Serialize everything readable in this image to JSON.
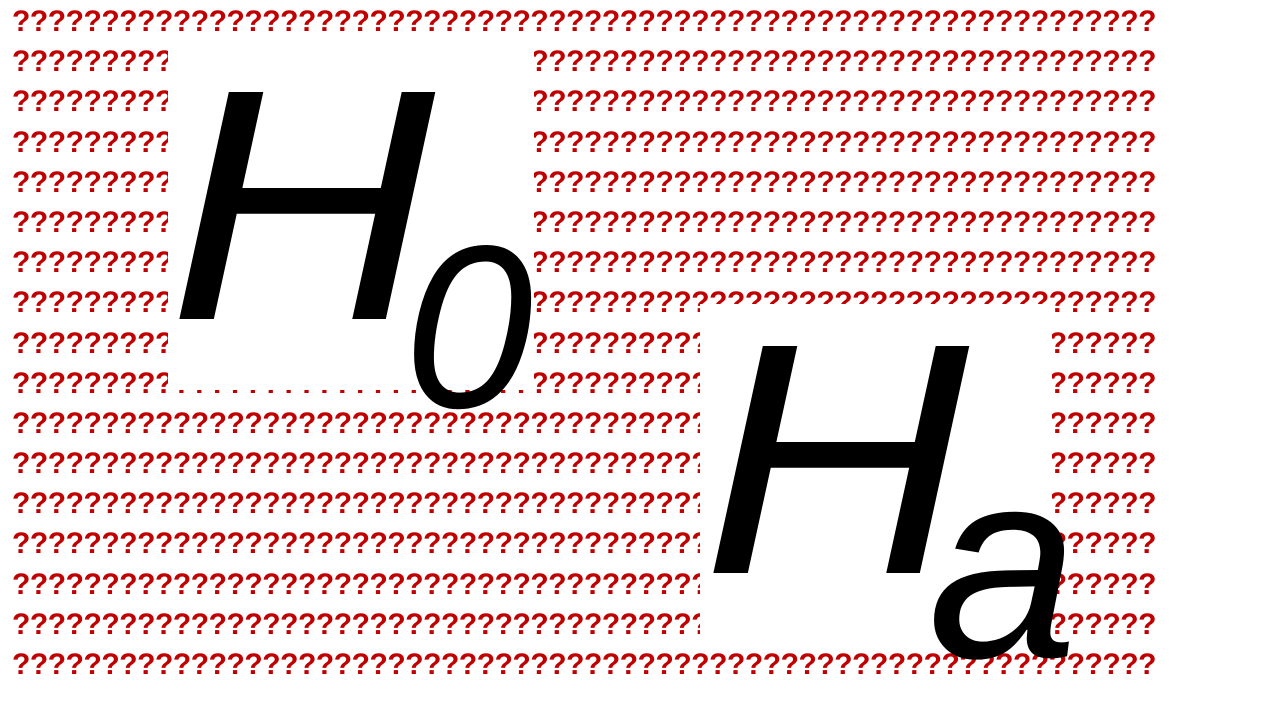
{
  "background": {
    "pattern_character": "?",
    "pattern_color": "#c00000",
    "rows": 17,
    "chars_per_row": 64
  },
  "null_hypothesis": {
    "main": "H",
    "subscript": "0"
  },
  "alternative_hypothesis": {
    "main": "H",
    "subscript": "a"
  },
  "colors": {
    "slide_background": "#ffffff",
    "symbol": "#000000"
  }
}
